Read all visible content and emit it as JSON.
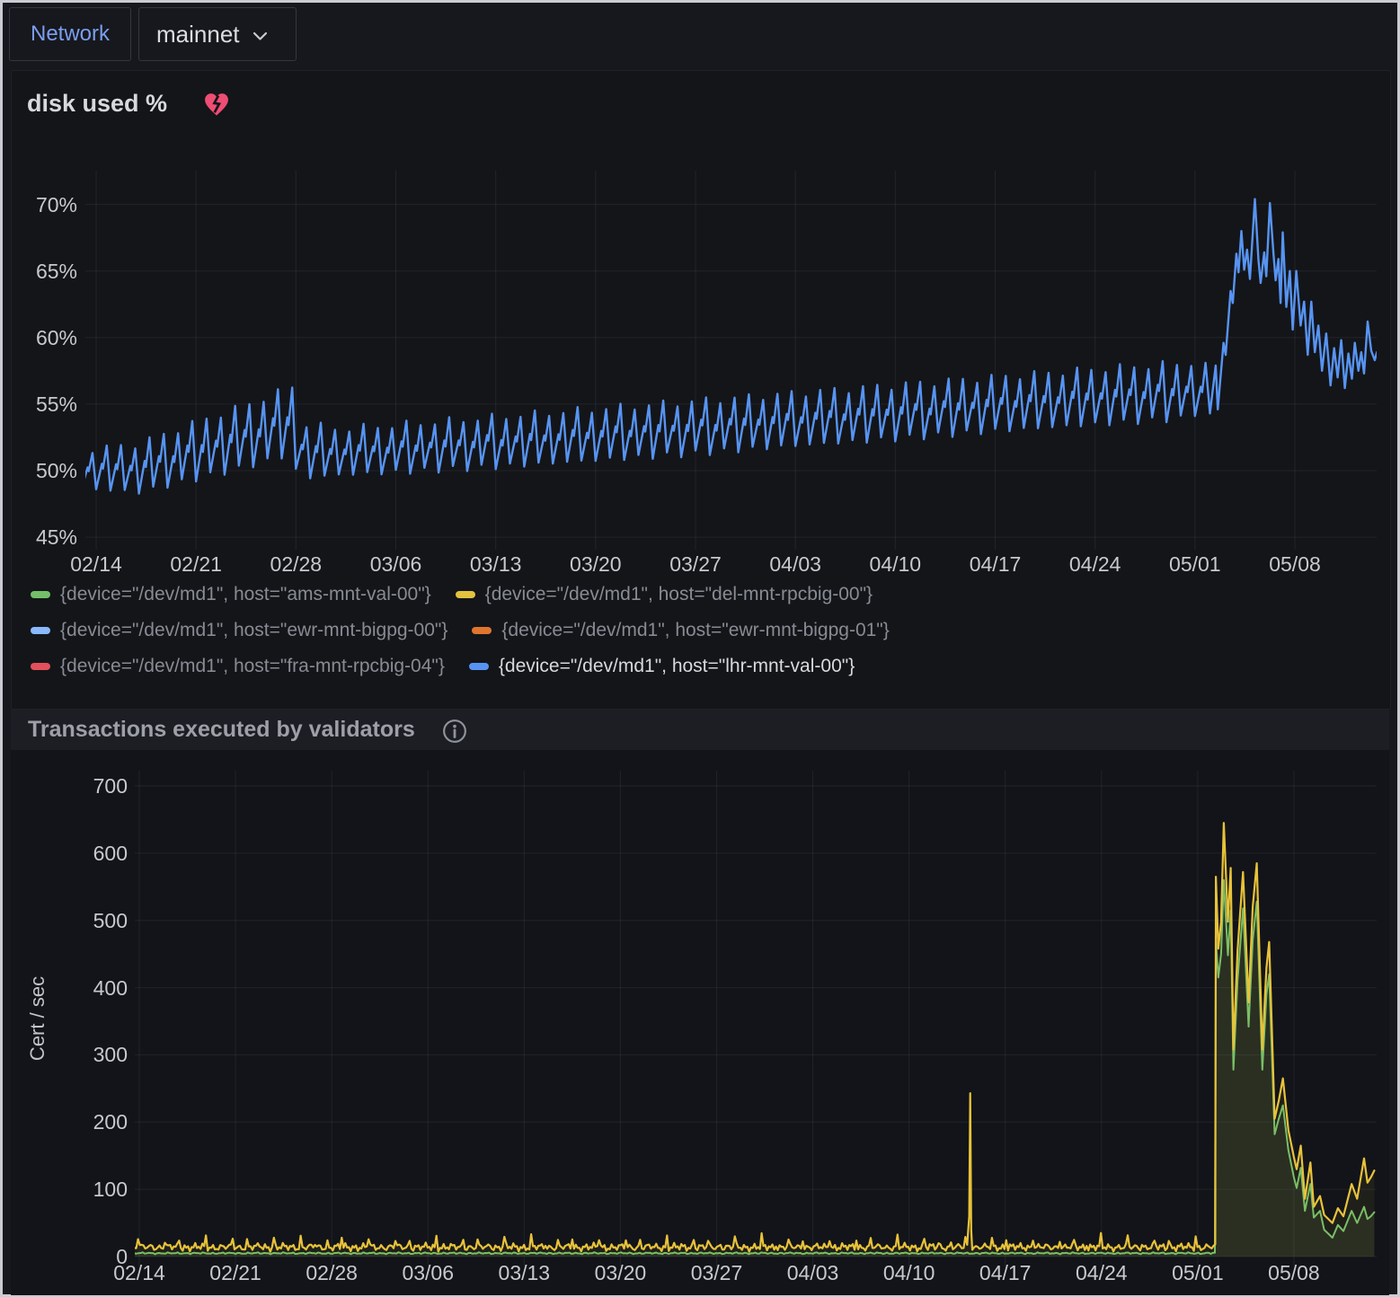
{
  "topbar": {
    "network_label": "Network",
    "network_value": "mainnet",
    "chevron_icon": "chevron-down-icon"
  },
  "panels": {
    "disk": {
      "title": "disk used %",
      "alert_icon": "broken-heart-icon",
      "alert_color": "#ef4d73"
    },
    "tx": {
      "title": "Transactions executed by validators",
      "info_icon": "info-icon"
    }
  },
  "chart_data": [
    {
      "type": "line",
      "title": "disk used %",
      "xlabel": "",
      "ylabel": "",
      "x_tick_labels": [
        "02/14",
        "02/21",
        "02/28",
        "03/06",
        "03/13",
        "03/20",
        "03/27",
        "04/03",
        "04/10",
        "04/17",
        "04/24",
        "05/01",
        "05/08"
      ],
      "x_tick_days": [
        0,
        7,
        14,
        21,
        28,
        35,
        42,
        49,
        56,
        63,
        70,
        77,
        84
      ],
      "y_tick_values": [
        45,
        50,
        55,
        60,
        65,
        70
      ],
      "y_tick_labels": [
        "45%",
        "50%",
        "55%",
        "60%",
        "65%",
        "70%"
      ],
      "ylim": [
        44.0,
        72.7
      ],
      "xlim_days": [
        -0.8,
        89.8
      ],
      "grid": true,
      "legend_position": "bottom",
      "legend": [
        {
          "label": "{device=\"/dev/md1\", host=\"ams-mnt-val-00\"}",
          "color": "#73BF69",
          "active": false
        },
        {
          "label": "{device=\"/dev/md1\", host=\"del-mnt-rpcbig-00\"}",
          "color": "#E3C23F",
          "active": false
        },
        {
          "label": "{device=\"/dev/md1\", host=\"ewr-mnt-bigpg-00\"}",
          "color": "#8AB8FF",
          "active": false
        },
        {
          "label": "{device=\"/dev/md1\", host=\"ewr-mnt-bigpg-01\"}",
          "color": "#E0752F",
          "active": false
        },
        {
          "label": "{device=\"/dev/md1\", host=\"fra-mnt-rpcbig-04\"}",
          "color": "#E2505C",
          "active": false
        },
        {
          "label": "{device=\"/dev/md1\", host=\"lhr-mnt-val-00\"}",
          "color": "#5794F2",
          "active": true
        }
      ],
      "series": [
        {
          "name": "{device=\"/dev/md1\", host=\"lhr-mnt-val-00\"}",
          "color": "#5794F2",
          "width": 2.4,
          "fill_opacity": 0,
          "parts": [
            {
              "type": "sawtooth",
              "from": -1,
              "to": 77,
              "jitter": [
                0.22,
                0.3
              ],
              "envelope": [
                [
                  -1,
                  48.7,
                  51.7
                ],
                [
                  0,
                  48.6,
                  51.6
                ],
                [
                  3,
                  48.4,
                  52.0
                ],
                [
                  7,
                  49.4,
                  53.6
                ],
                [
                  10.5,
                  50.3,
                  54.9
                ],
                [
                  13.8,
                  51.3,
                  56.3
                ],
                [
                  14.1,
                  49.4,
                  53.6
                ],
                [
                  17,
                  49.7,
                  53.1
                ],
                [
                  21,
                  49.9,
                  53.4
                ],
                [
                  28,
                  50.3,
                  54.0
                ],
                [
                  35,
                  50.8,
                  54.6
                ],
                [
                  42,
                  51.3,
                  55.2
                ],
                [
                  49,
                  51.9,
                  55.8
                ],
                [
                  56,
                  52.4,
                  56.4
                ],
                [
                  63,
                  53.0,
                  57.0
                ],
                [
                  70,
                  53.5,
                  57.6
                ],
                [
                  77,
                  54.0,
                  58.1
                ],
                [
                  78,
                  54.2,
                  58.2
                ]
              ]
            },
            {
              "type": "points",
              "pts": [
                [
                  77.0,
                  54.1
                ],
                [
                  77.4,
                  56.3
                ],
                [
                  77.5,
                  55.9
                ],
                [
                  77.74,
                  58.1
                ],
                [
                  78.05,
                  54.3
                ],
                [
                  78.45,
                  57.9
                ],
                [
                  78.6,
                  54.6
                ],
                [
                  79.0,
                  59.6
                ],
                [
                  79.15,
                  58.7
                ],
                [
                  79.5,
                  63.5
                ],
                [
                  79.65,
                  62.6
                ],
                [
                  79.9,
                  66.3
                ],
                [
                  80.05,
                  64.9
                ],
                [
                  80.25,
                  68.0
                ],
                [
                  80.45,
                  65.1
                ],
                [
                  80.65,
                  66.6
                ],
                [
                  80.85,
                  64.4
                ],
                [
                  81.2,
                  70.4
                ],
                [
                  81.45,
                  65.8
                ],
                [
                  81.6,
                  64.1
                ],
                [
                  81.85,
                  66.4
                ],
                [
                  82.0,
                  64.6
                ],
                [
                  82.25,
                  70.1
                ],
                [
                  82.5,
                  66.3
                ],
                [
                  82.65,
                  64.3
                ],
                [
                  82.85,
                  65.9
                ],
                [
                  83.0,
                  62.6
                ],
                [
                  83.15,
                  67.9
                ],
                [
                  83.4,
                  62.3
                ],
                [
                  83.65,
                  65.0
                ],
                [
                  83.85,
                  60.6
                ],
                [
                  84.1,
                  65.0
                ],
                [
                  84.4,
                  60.9
                ],
                [
                  84.65,
                  62.7
                ],
                [
                  84.9,
                  58.7
                ],
                [
                  85.15,
                  62.7
                ],
                [
                  85.4,
                  58.9
                ],
                [
                  85.65,
                  60.9
                ],
                [
                  85.9,
                  57.5
                ],
                [
                  86.2,
                  60.3
                ],
                [
                  86.5,
                  56.4
                ],
                [
                  86.75,
                  59.2
                ],
                [
                  87.0,
                  57.0
                ],
                [
                  87.25,
                  59.8
                ],
                [
                  87.5,
                  56.2
                ],
                [
                  87.75,
                  58.8
                ],
                [
                  88.0,
                  56.9
                ],
                [
                  88.2,
                  59.6
                ],
                [
                  88.45,
                  57.5
                ],
                [
                  88.65,
                  58.9
                ],
                [
                  88.85,
                  57.3
                ],
                [
                  89.1,
                  61.2
                ],
                [
                  89.35,
                  59.0
                ],
                [
                  89.6,
                  58.3
                ],
                [
                  89.75,
                  58.9
                ]
              ]
            }
          ]
        }
      ]
    },
    {
      "type": "line",
      "title": "Transactions executed by validators",
      "xlabel": "",
      "ylabel": "Cert / sec",
      "x_tick_labels": [
        "02/14",
        "02/21",
        "02/28",
        "03/06",
        "03/13",
        "03/20",
        "03/27",
        "04/03",
        "04/10",
        "04/17",
        "04/24",
        "05/01",
        "05/08"
      ],
      "x_tick_days": [
        0,
        7,
        14,
        21,
        28,
        35,
        42,
        49,
        56,
        63,
        70,
        77,
        84
      ],
      "y_tick_values": [
        0,
        100,
        200,
        300,
        400,
        500,
        600,
        700
      ],
      "y_tick_labels": [
        "0",
        "100",
        "200",
        "300",
        "400",
        "500",
        "600",
        "700"
      ],
      "ylim": [
        0,
        722
      ],
      "xlim_days": [
        -0.4,
        90.0
      ],
      "grid": true,
      "legend_position": "none",
      "series": [
        {
          "name": "validators-green",
          "color": "#73BF69",
          "width": 2,
          "fill_opacity": 0.1,
          "parts": [
            {
              "type": "noise",
              "from": -0.35,
              "to": 78.28,
              "step": 0.15,
              "base": 5,
              "amp": 1.6,
              "spike": 0
            },
            {
              "type": "points",
              "pts": [
                [
                  78.32,
                  470
                ],
                [
                  78.5,
                  415
                ],
                [
                  78.7,
                  450
                ],
                [
                  78.9,
                  560
                ],
                [
                  79.2,
                  448
                ],
                [
                  79.4,
                  515
                ],
                [
                  79.6,
                  278
                ],
                [
                  79.9,
                  410
                ],
                [
                  80.3,
                  518
                ],
                [
                  80.7,
                  342
                ],
                [
                  81.0,
                  470
                ],
                [
                  81.3,
                  528
                ],
                [
                  81.7,
                  278
                ],
                [
                  82.0,
                  390
                ],
                [
                  82.2,
                  420
                ],
                [
                  82.6,
                  182
                ],
                [
                  82.9,
                  205
                ],
                [
                  83.2,
                  225
                ],
                [
                  83.6,
                  158
                ],
                [
                  84.0,
                  118
                ],
                [
                  84.2,
                  102
                ],
                [
                  84.5,
                  132
                ],
                [
                  84.8,
                  68
                ],
                [
                  85.2,
                  108
                ],
                [
                  85.45,
                  58
                ],
                [
                  85.9,
                  68
                ],
                [
                  86.2,
                  40
                ],
                [
                  86.5,
                  34
                ],
                [
                  86.8,
                  28
                ],
                [
                  87.2,
                  47
                ],
                [
                  87.6,
                  38
                ],
                [
                  88.2,
                  68
                ],
                [
                  88.6,
                  50
                ],
                [
                  89.1,
                  74
                ],
                [
                  89.35,
                  56
                ],
                [
                  89.6,
                  60
                ],
                [
                  89.85,
                  66
                ]
              ]
            }
          ]
        },
        {
          "name": "validators-yellow",
          "color": "#E8C23A",
          "width": 2.2,
          "fill_opacity": 0.07,
          "parts": [
            {
              "type": "noise",
              "from": -0.35,
              "to": 60.3,
              "step": 0.13,
              "base": 14,
              "amp": 7,
              "spike": 22
            },
            {
              "type": "points",
              "pts": [
                [
                  60.38,
                  60
                ],
                [
                  60.45,
                  243
                ],
                [
                  60.52,
                  40
                ]
              ]
            },
            {
              "type": "noise",
              "from": 60.6,
              "to": 78.28,
              "step": 0.13,
              "base": 14,
              "amp": 7,
              "spike": 22
            },
            {
              "type": "points",
              "pts": [
                [
                  78.32,
                  565
                ],
                [
                  78.5,
                  458
                ],
                [
                  78.7,
                  498
                ],
                [
                  78.9,
                  645
                ],
                [
                  79.2,
                  498
                ],
                [
                  79.4,
                  578
                ],
                [
                  79.6,
                  308
                ],
                [
                  79.9,
                  455
                ],
                [
                  80.3,
                  572
                ],
                [
                  80.7,
                  378
                ],
                [
                  81.0,
                  520
                ],
                [
                  81.3,
                  585
                ],
                [
                  81.7,
                  308
                ],
                [
                  82.0,
                  430
                ],
                [
                  82.2,
                  468
                ],
                [
                  82.6,
                  205
                ],
                [
                  82.9,
                  232
                ],
                [
                  83.2,
                  265
                ],
                [
                  83.6,
                  188
                ],
                [
                  84.0,
                  148
                ],
                [
                  84.2,
                  130
                ],
                [
                  84.5,
                  165
                ],
                [
                  84.8,
                  86
                ],
                [
                  85.2,
                  140
                ],
                [
                  85.45,
                  74
                ],
                [
                  85.9,
                  90
                ],
                [
                  86.2,
                  62
                ],
                [
                  86.5,
                  56
                ],
                [
                  86.8,
                  50
                ],
                [
                  87.2,
                  72
                ],
                [
                  87.6,
                  60
                ],
                [
                  88.2,
                  108
                ],
                [
                  88.6,
                  86
                ],
                [
                  89.1,
                  146
                ],
                [
                  89.35,
                  110
                ],
                [
                  89.6,
                  118
                ],
                [
                  89.85,
                  128
                ]
              ]
            }
          ]
        }
      ]
    }
  ]
}
